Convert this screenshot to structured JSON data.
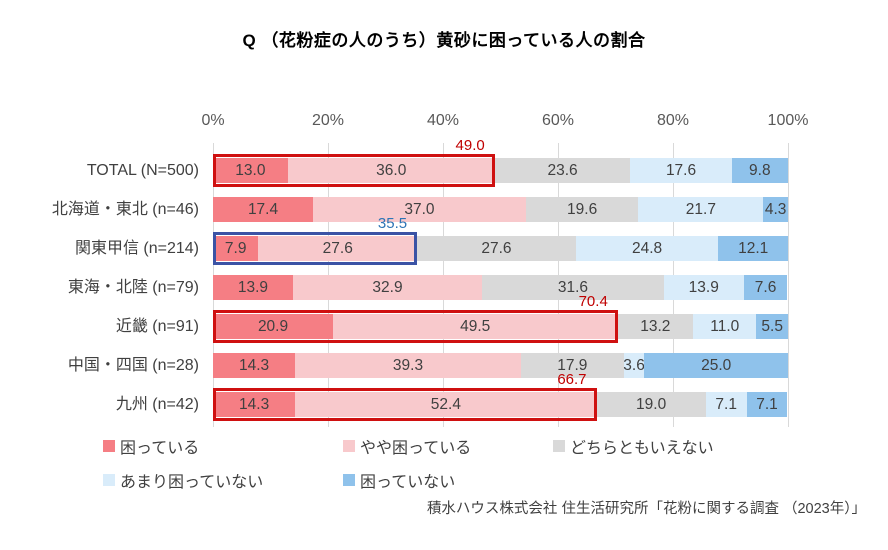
{
  "title": "Q （花粉症の人のうち）黄砂に困っている人の割合",
  "source": "積水ハウス株式会社 住生活研究所「花粉に関する調査 （2023年）」",
  "colors": {
    "highlight_red": "#cf1010",
    "highlight_red_text": "#c00000",
    "highlight_blue": "#3b53a5",
    "highlight_blue_text": "#2e75b6",
    "gridline": "#d9d9d9",
    "tick_text": "#595959",
    "label_text": "#404040"
  },
  "chart_data": {
    "type": "bar",
    "stacked": true,
    "orientation": "horizontal",
    "title": "Q （花粉症の人のうち）黄砂に困っている人の割合",
    "xlim": [
      0,
      100
    ],
    "x_ticks": [
      "0%",
      "20%",
      "40%",
      "60%",
      "80%",
      "100%"
    ],
    "grid": true,
    "legend_position": "bottom",
    "categories": [
      "TOTAL (N=500)",
      "北海道・東北 (n=46)",
      "関東甲信 (n=214)",
      "東海・北陸 (n=79)",
      "近畿 (n=91)",
      "中国・四国 (n=28)",
      "九州 (n=42)"
    ],
    "series": [
      {
        "name": "困っている",
        "color": "#f57e84",
        "values": [
          13.0,
          17.4,
          7.9,
          13.9,
          20.9,
          14.3,
          14.3
        ]
      },
      {
        "name": "やや困っている",
        "color": "#f8c9cc",
        "values": [
          36.0,
          37.0,
          27.6,
          32.9,
          49.5,
          39.3,
          52.4
        ]
      },
      {
        "name": "どちらともいえない",
        "color": "#d9d9d9",
        "values": [
          23.6,
          19.6,
          27.6,
          31.6,
          13.2,
          17.9,
          19.0
        ]
      },
      {
        "name": "あまり困っていない",
        "color": "#d9ecfa",
        "values": [
          17.6,
          21.7,
          24.8,
          13.9,
          11.0,
          3.6,
          7.1
        ]
      },
      {
        "name": "困っていない",
        "color": "#8fc2eb",
        "values": [
          9.8,
          4.3,
          12.1,
          7.6,
          5.5,
          25.0,
          7.1
        ]
      }
    ],
    "highlights": [
      {
        "row": 0,
        "span": 49.0,
        "label": "49.0",
        "box_color": "#cf1010",
        "label_color": "#c00000"
      },
      {
        "row": 2,
        "span": 35.5,
        "label": "35.5",
        "box_color": "#3b53a5",
        "label_color": "#2e75b6"
      },
      {
        "row": 4,
        "span": 70.4,
        "label": "70.4",
        "box_color": "#cf1010",
        "label_color": "#c00000"
      },
      {
        "row": 6,
        "span": 66.7,
        "label": "66.7",
        "box_color": "#cf1010",
        "label_color": "#c00000"
      }
    ],
    "legend_rows": [
      [
        "困っている",
        "やや困っている",
        "どちらともいえない"
      ],
      [
        "あまり困っていない",
        "困っていない"
      ]
    ]
  }
}
